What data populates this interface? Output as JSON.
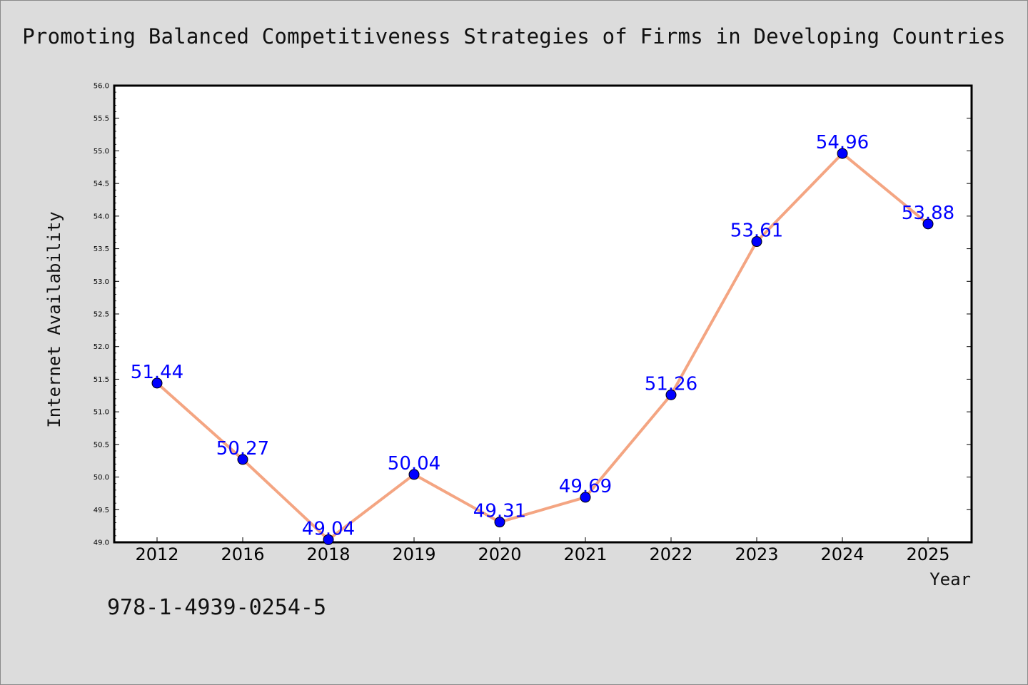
{
  "title": "Promoting Balanced Competitiveness Strategies of Firms in Developing Countries",
  "isbn": "978-1-4939-0254-5",
  "colors": {
    "background": "#dcdcdc",
    "plot_background": "#ffffff",
    "line": "#f4a582",
    "marker": "#0000ff",
    "label": "#0000ff"
  },
  "chart_data": {
    "type": "line",
    "xlabel": "Year",
    "ylabel": "Internet Availability",
    "categories": [
      "2012",
      "2016",
      "2018",
      "2019",
      "2020",
      "2021",
      "2022",
      "2023",
      "2024",
      "2025"
    ],
    "values": [
      51.44,
      50.27,
      49.04,
      50.04,
      49.31,
      49.69,
      51.26,
      53.61,
      54.96,
      53.88
    ],
    "data_labels": [
      "51.44",
      "50.27",
      "49.04",
      "50.04",
      "49.31",
      "49.69",
      "51.26",
      "53.61",
      "54.96",
      "53.88"
    ],
    "ylim": [
      49.0,
      56.0
    ],
    "yticks": [
      "49.0",
      "49.5",
      "50.0",
      "50.5",
      "51.0",
      "51.5",
      "52.0",
      "52.5",
      "53.0",
      "53.5",
      "54.0",
      "54.5",
      "55.0",
      "55.5",
      "56.0"
    ],
    "grid": false,
    "legend": "none"
  }
}
